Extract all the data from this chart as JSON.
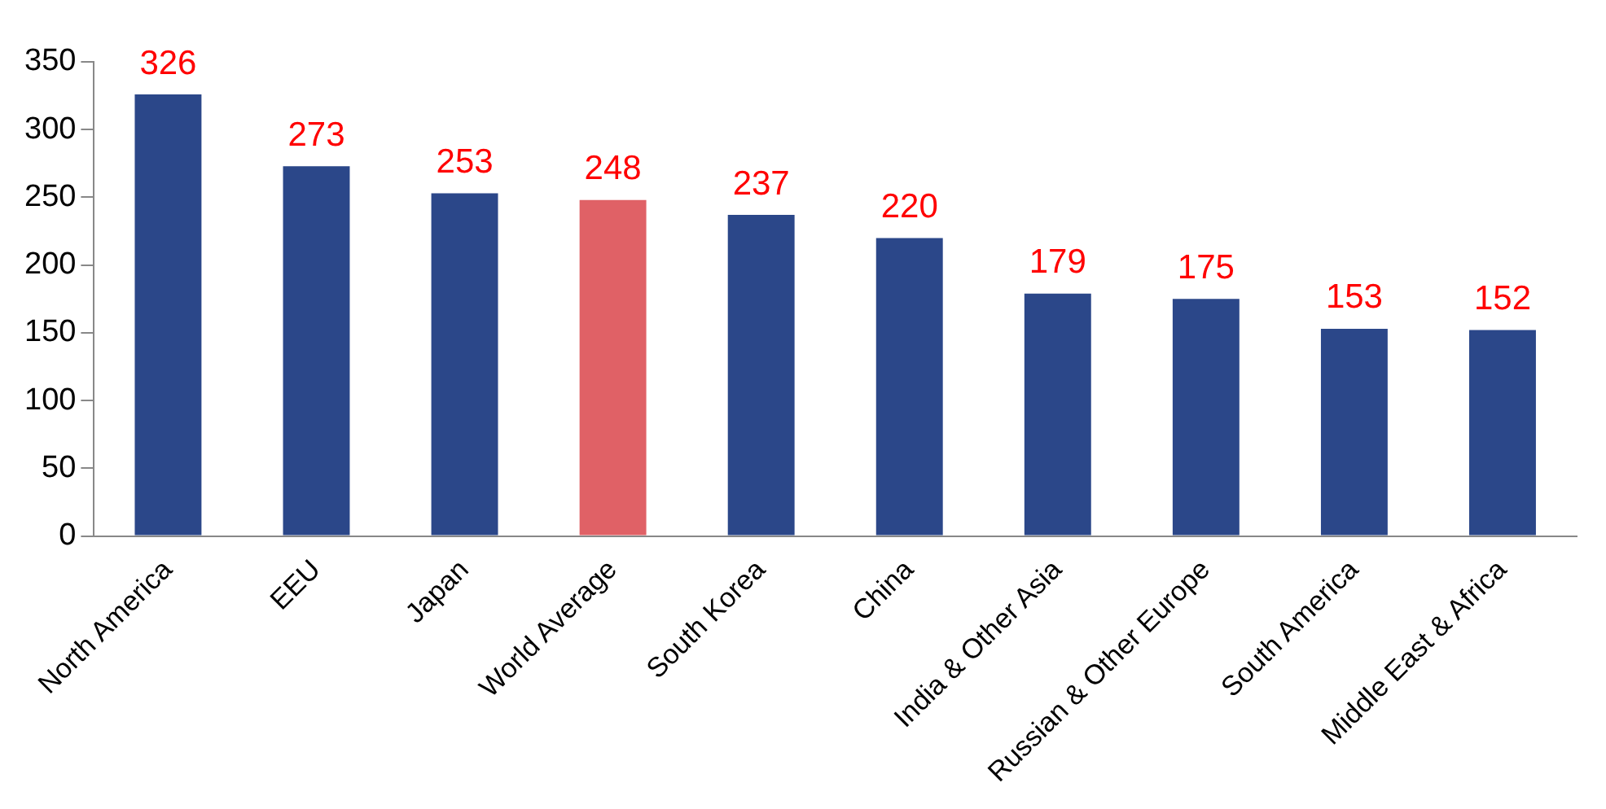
{
  "chart_data": {
    "type": "bar",
    "categories": [
      "North America",
      "EEU",
      "Japan",
      "World Average",
      "South Korea",
      "China",
      "India & Other Asia",
      "Russian & Other Europe",
      "South America",
      "Middle East & Africa"
    ],
    "values": [
      326,
      273,
      253,
      248,
      237,
      220,
      179,
      175,
      153,
      152
    ],
    "colors": [
      "#2b4789",
      "#2b4789",
      "#2b4789",
      "#e06166",
      "#2b4789",
      "#2b4789",
      "#2b4789",
      "#2b4789",
      "#2b4789",
      "#2b4789"
    ],
    "ylim": [
      0,
      350
    ],
    "yticks": [
      0,
      50,
      100,
      150,
      200,
      250,
      300,
      350
    ],
    "data_labels": true
  }
}
